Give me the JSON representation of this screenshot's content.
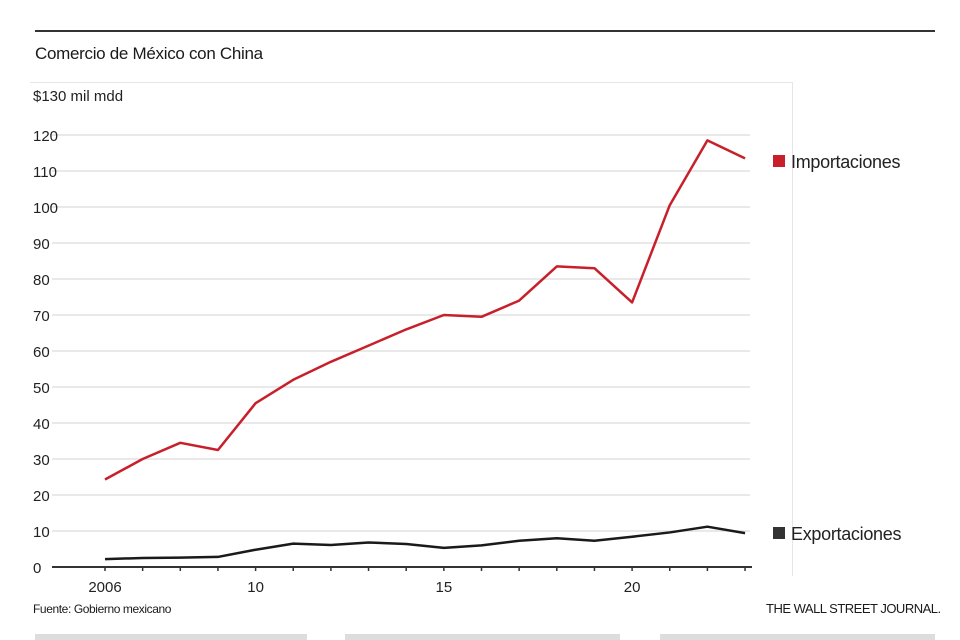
{
  "chart_data": {
    "type": "line",
    "title": "Comercio de México con China",
    "ylabel": "$130 mil mdd",
    "xlabel": "",
    "x": [
      2006,
      2007,
      2008,
      2009,
      2010,
      2011,
      2012,
      2013,
      2014,
      2015,
      2016,
      2017,
      2018,
      2019,
      2020,
      2021,
      2022,
      2023
    ],
    "xticks": [
      2006,
      2010,
      2015,
      2020
    ],
    "xtick_labels": [
      "2006",
      "10",
      "15",
      "20"
    ],
    "yticks": [
      0,
      10,
      20,
      30,
      40,
      50,
      60,
      70,
      80,
      90,
      100,
      110,
      120
    ],
    "ytick_labels": [
      "0",
      "10",
      "20",
      "30",
      "40",
      "50",
      "60",
      "70",
      "80",
      "90",
      "100",
      "110",
      "120"
    ],
    "ylim": [
      0,
      130
    ],
    "grid": true,
    "series": [
      {
        "name": "Importaciones",
        "color": "#c8202a",
        "values": [
          24.3,
          30,
          34.5,
          32.5,
          45.5,
          52,
          57,
          61.5,
          66,
          70,
          69.5,
          74,
          83.5,
          83,
          73.5,
          100.5,
          118.5,
          113.5
        ]
      },
      {
        "name": "Exportaciones",
        "color": "#1a1a1a",
        "values": [
          2.2,
          2.5,
          2.6,
          2.8,
          4.8,
          6.5,
          6.1,
          6.8,
          6.4,
          5.3,
          6,
          7.3,
          8,
          7.3,
          8.4,
          9.6,
          11.2,
          9.4
        ]
      }
    ]
  },
  "footer": {
    "source": "Fuente: Gobierno mexicano",
    "brand": "THE WALL STREET JOURNAL."
  }
}
